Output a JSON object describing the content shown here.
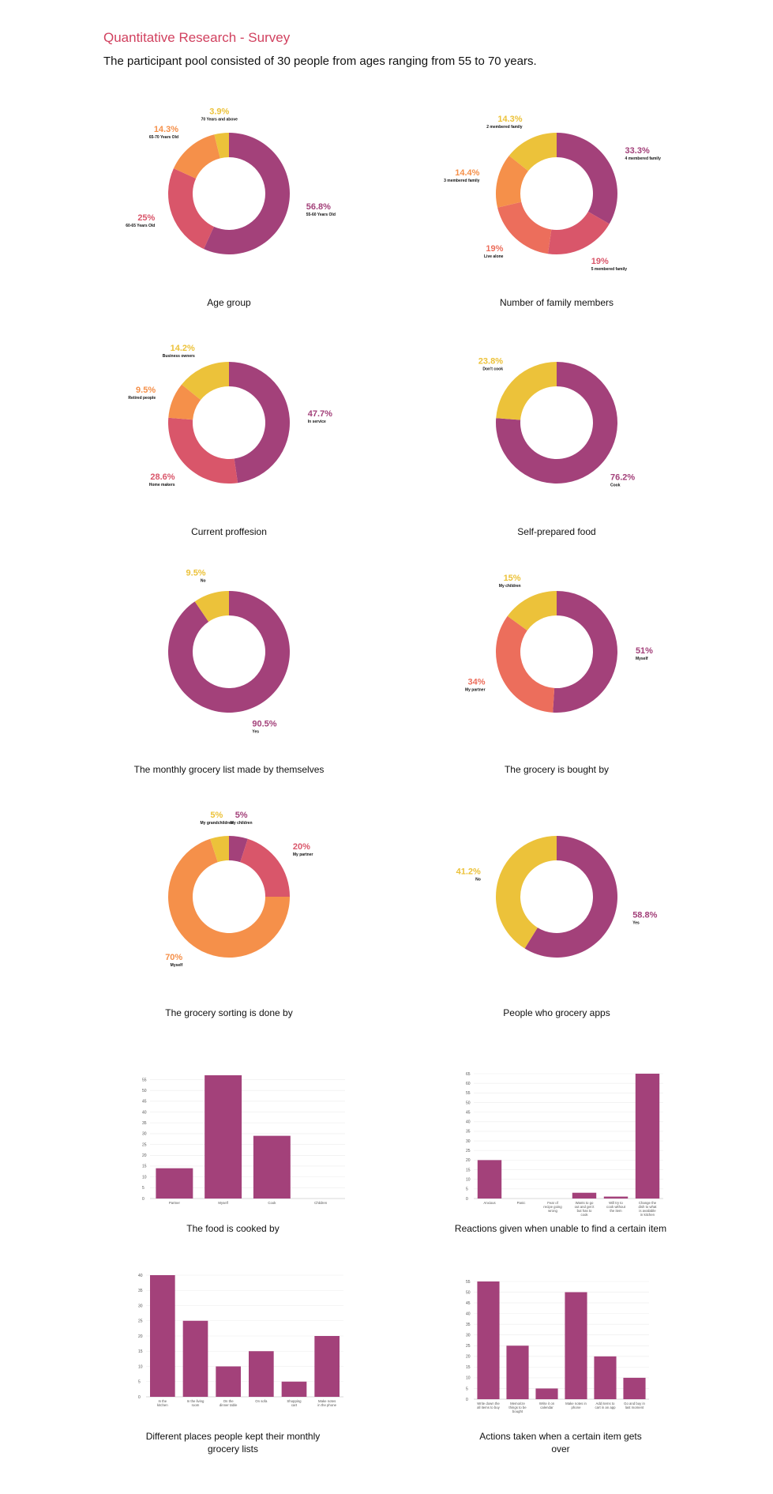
{
  "heading": "Quantitative Research - Survey",
  "subheading": "The participant pool consisted of 30 people from ages ranging from 55 to 70 years.",
  "colors": {
    "accent": "#d1415f",
    "plum": "#a3417a",
    "rose": "#d9566a",
    "coral": "#ec6e5c",
    "orange": "#f5904a",
    "yellow": "#ecc23a",
    "bar": "#a3417a",
    "grid": "#ececec"
  },
  "chart_data": [
    {
      "type": "pie",
      "title": "Age group",
      "slices": [
        {
          "name": "55-60 Years Old",
          "value": 56.8,
          "label": "56.8%",
          "color": "#a3417a"
        },
        {
          "name": "60-65 Years Old",
          "value": 25,
          "label": "25%",
          "color": "#d9566a"
        },
        {
          "name": "65-70 Years Old",
          "value": 14.3,
          "label": "14.3%",
          "color": "#f5904a"
        },
        {
          "name": "70 Years and above",
          "value": 3.9,
          "label": "3.9%",
          "color": "#ecc23a"
        }
      ]
    },
    {
      "type": "pie",
      "title": "Number of family members",
      "slices": [
        {
          "name": "4 membered family",
          "value": 33.3,
          "label": "33.3%",
          "color": "#a3417a"
        },
        {
          "name": "5 membered family",
          "value": 19,
          "label": "19%",
          "color": "#d9566a"
        },
        {
          "name": "Live alone",
          "value": 19,
          "label": "19%",
          "color": "#ec6e5c"
        },
        {
          "name": "3 membered family",
          "value": 14.4,
          "label": "14.4%",
          "color": "#f5904a"
        },
        {
          "name": "2 membered family",
          "value": 14.3,
          "label": "14.3%",
          "color": "#ecc23a"
        }
      ]
    },
    {
      "type": "pie",
      "title": "Current proffesion",
      "slices": [
        {
          "name": "In service",
          "value": 47.7,
          "label": "47.7%",
          "color": "#a3417a"
        },
        {
          "name": "Home makers",
          "value": 28.6,
          "label": "28.6%",
          "color": "#d9566a"
        },
        {
          "name": "Retired people",
          "value": 9.5,
          "label": "9.5%",
          "color": "#f5904a"
        },
        {
          "name": "Business owners",
          "value": 14.2,
          "label": "14.2%",
          "color": "#ecc23a"
        }
      ]
    },
    {
      "type": "pie",
      "title": "Self-prepared food",
      "slices": [
        {
          "name": "Cook",
          "value": 76.2,
          "label": "76.2%",
          "color": "#a3417a"
        },
        {
          "name": "Don't cook",
          "value": 23.8,
          "label": "23.8%",
          "color": "#ecc23a"
        }
      ]
    },
    {
      "type": "pie",
      "title": "The monthly grocery list made by themselves",
      "slices": [
        {
          "name": "Yes",
          "value": 90.5,
          "label": "90.5%",
          "color": "#a3417a"
        },
        {
          "name": "No",
          "value": 9.5,
          "label": "9.5%",
          "color": "#ecc23a"
        }
      ]
    },
    {
      "type": "pie",
      "title": "The grocery is bought by",
      "slices": [
        {
          "name": "Myself",
          "value": 51,
          "label": "51%",
          "color": "#a3417a"
        },
        {
          "name": "My partner",
          "value": 34,
          "label": "34%",
          "color": "#ec6e5c"
        },
        {
          "name": "My children",
          "value": 15,
          "label": "15%",
          "color": "#ecc23a"
        }
      ]
    },
    {
      "type": "pie",
      "title": "The grocery sorting is done by",
      "slices": [
        {
          "name": "My children",
          "value": 5,
          "label": "5%",
          "color": "#a3417a"
        },
        {
          "name": "My partner",
          "value": 20,
          "label": "20%",
          "color": "#d9566a"
        },
        {
          "name": "Myself",
          "value": 70,
          "label": "70%",
          "color": "#f5904a"
        },
        {
          "name": "My grandchildren",
          "value": 5,
          "label": "5%",
          "color": "#ecc23a"
        }
      ]
    },
    {
      "type": "pie",
      "title": "People who grocery apps",
      "slices": [
        {
          "name": "Yes",
          "value": 58.8,
          "label": "58.8%",
          "color": "#a3417a"
        },
        {
          "name": "No",
          "value": 41.2,
          "label": "41.2%",
          "color": "#ecc23a"
        }
      ]
    },
    {
      "type": "bar",
      "title": "The food is cooked by",
      "categories": [
        [
          "Partner"
        ],
        [
          "Myself"
        ],
        [
          "Cook"
        ],
        [
          "Children"
        ]
      ],
      "values": [
        14,
        57,
        29,
        0
      ],
      "yticks": [
        0,
        5,
        10,
        15,
        20,
        25,
        30,
        35,
        40,
        45,
        50,
        55
      ],
      "ylim": [
        0,
        57
      ]
    },
    {
      "type": "bar",
      "title": "Reactions given when unable to find a certain item",
      "categories": [
        [
          "Anxious"
        ],
        [
          "Panic"
        ],
        [
          "Fear of",
          "recipe going",
          "wrong"
        ],
        [
          "Wants to go",
          "out and get it",
          "but has to",
          "cook"
        ],
        [
          "Will try to",
          "cook without",
          "the item"
        ],
        [
          "Change the",
          "dish to what",
          "is available",
          "in kitchen"
        ]
      ],
      "values": [
        20,
        0,
        0,
        3,
        1,
        65
      ],
      "yticks": [
        0,
        5,
        10,
        15,
        20,
        25,
        30,
        35,
        40,
        45,
        50,
        55,
        60,
        65
      ],
      "ylim": [
        0,
        65
      ]
    },
    {
      "type": "bar",
      "title": "Different places people kept their monthly grocery lists",
      "categories": [
        [
          "In the",
          "kitchen"
        ],
        [
          "In the living",
          "room"
        ],
        [
          "On the",
          "dinner table"
        ],
        [
          "On sofa"
        ],
        [
          "Shopping",
          "cart"
        ],
        [
          "Make notes",
          "in the phone"
        ]
      ],
      "values": [
        40,
        25,
        10,
        15,
        5,
        20
      ],
      "yticks": [
        0,
        5,
        10,
        15,
        20,
        25,
        30,
        35,
        40
      ],
      "ylim": [
        0,
        40
      ]
    },
    {
      "type": "bar",
      "title": "Actions taken when a certain item gets over",
      "categories": [
        [
          "Write down the",
          "all items to buy"
        ],
        [
          "Memorize",
          "things to be",
          "bought"
        ],
        [
          "Write it on",
          "calendar"
        ],
        [
          "Make notes in",
          "phone"
        ],
        [
          "Add items to",
          "cart in an app"
        ],
        [
          "Go and buy in",
          "last moment"
        ]
      ],
      "values": [
        55,
        25,
        5,
        50,
        20,
        10
      ],
      "yticks": [
        0,
        5,
        10,
        15,
        20,
        25,
        30,
        35,
        40,
        45,
        50,
        55
      ],
      "ylim": [
        0,
        55
      ]
    }
  ]
}
